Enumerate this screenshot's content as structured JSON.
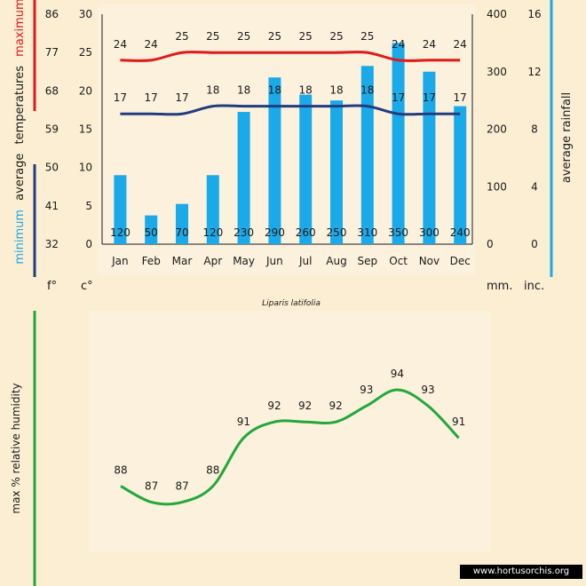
{
  "species": "Liparis latifolia",
  "credit": "www.hortusorchis.org",
  "labels": {
    "left_axis_words": [
      "minimum",
      "average",
      "temperatures",
      "maximum"
    ],
    "rain_axis": "average  rainfall",
    "humidity_axis": "max  %  relative humidity",
    "unit_f": "f°",
    "unit_c": "c°",
    "unit_mm": "mm.",
    "unit_inc": "inc."
  },
  "colors": {
    "max_temp": "#e0191a",
    "min_temp": "#223c80",
    "rain": "#1aa9e9",
    "humidity": "#22a83a",
    "minimum_word": "#1aa9e9",
    "maximum_word": "#e0191a"
  },
  "chart_data": [
    {
      "type": "bar",
      "categories": [
        "Jan",
        "Feb",
        "Mar",
        "Apr",
        "May",
        "Jun",
        "Jul",
        "Aug",
        "Sep",
        "Oct",
        "Nov",
        "Dec"
      ],
      "series": [
        {
          "name": "average rainfall",
          "unit": "mm",
          "values": [
            120,
            50,
            70,
            120,
            230,
            290,
            260,
            250,
            310,
            350,
            300,
            240
          ]
        },
        {
          "name": "maximum",
          "unit": "c°",
          "values": [
            24,
            24,
            25,
            25,
            25,
            25,
            25,
            25,
            25,
            24,
            24,
            24
          ]
        },
        {
          "name": "minimum",
          "unit": "c°",
          "values": [
            17,
            17,
            17,
            18,
            18,
            18,
            18,
            18,
            18,
            17,
            17,
            17
          ]
        }
      ],
      "axes": {
        "celsius": {
          "ylim": [
            0,
            30
          ],
          "ticks": [
            0,
            5,
            10,
            15,
            20,
            25,
            30
          ]
        },
        "fahrenheit": {
          "ticks": [
            32,
            41,
            50,
            59,
            68,
            77,
            86
          ]
        },
        "rain_mm": {
          "ylim": [
            0,
            400
          ],
          "ticks": [
            0,
            100,
            200,
            300,
            400
          ]
        },
        "rain_inches": {
          "ticks": [
            0,
            4,
            8,
            12,
            16
          ]
        }
      },
      "grid": false
    },
    {
      "type": "line",
      "categories": [
        "Jan",
        "Feb",
        "Mar",
        "Apr",
        "May",
        "Jun",
        "Jul",
        "Aug",
        "Sep",
        "Oct",
        "Nov",
        "Dec"
      ],
      "series": [
        {
          "name": "max % relative humidity",
          "values": [
            88,
            87,
            87,
            88,
            91,
            92,
            92,
            92,
            93,
            94,
            93,
            91
          ]
        }
      ],
      "ylim": [
        86,
        95
      ],
      "grid": false
    }
  ]
}
